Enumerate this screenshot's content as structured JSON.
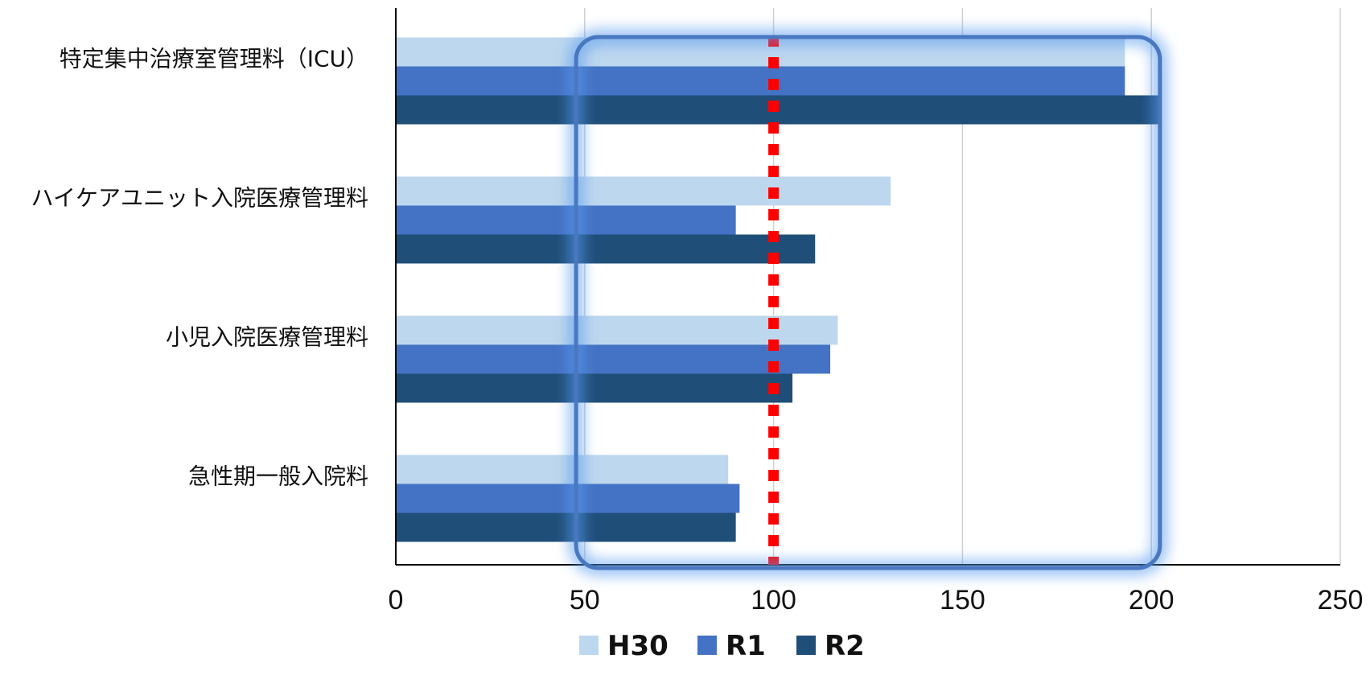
{
  "chart_data": {
    "type": "bar",
    "orientation": "horizontal",
    "categories": [
      "特定集中治療室管理料（ICU）",
      "ハイケアユニット入院医療管理料",
      "小児入院医療管理料",
      "急性期一般入院料"
    ],
    "series": [
      {
        "name": "H30",
        "color": "#bdd7ee",
        "values": [
          193,
          131,
          117,
          88
        ]
      },
      {
        "name": "R1",
        "color": "#4472c4",
        "values": [
          193,
          90,
          115,
          91
        ]
      },
      {
        "name": "R2",
        "color": "#1f4e79",
        "values": [
          202,
          111,
          105,
          90
        ]
      }
    ],
    "xlim": [
      0,
      250
    ],
    "xticks": [
      0,
      50,
      100,
      150,
      200,
      250
    ],
    "grid": true,
    "legend_position": "bottom",
    "reference_line": {
      "value": 100,
      "color": "#ff0000",
      "style": "dotted"
    },
    "highlight_box": {
      "x_range": [
        49,
        201
      ],
      "color": "#4a78c0"
    }
  }
}
